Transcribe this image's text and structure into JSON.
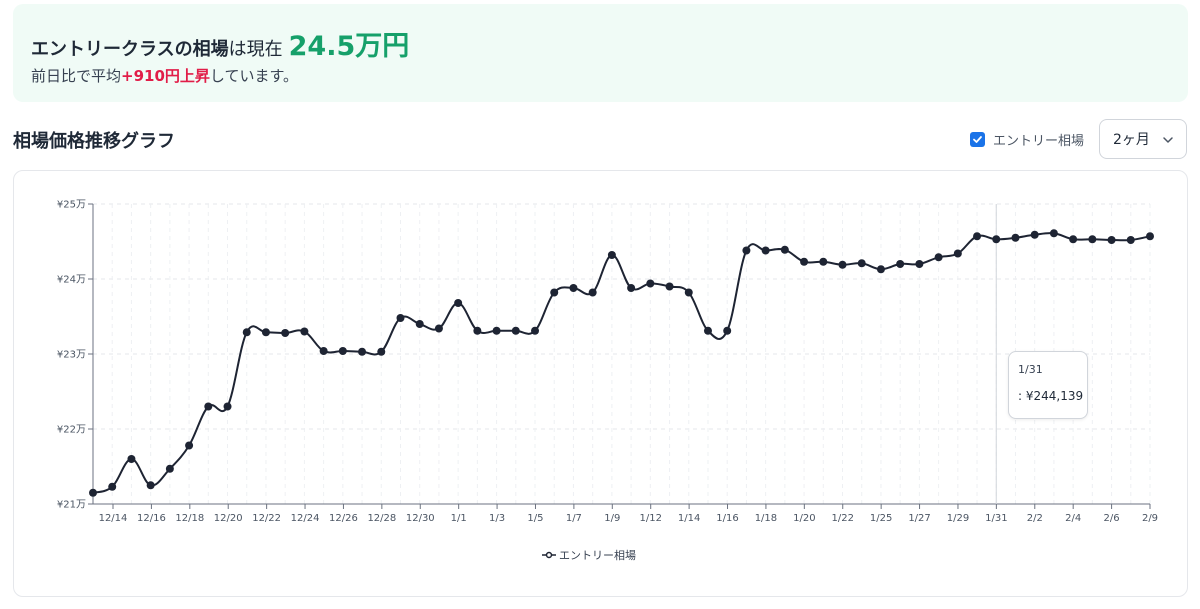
{
  "banner": {
    "category_label": "エントリークラスの相場",
    "price_text_prefix": "は現在",
    "price": "24.5万円",
    "change_prefix": "前日比で平均",
    "change_value": "+910円上昇",
    "change_suffix": "しています。"
  },
  "section": {
    "title": "相場価格推移グラフ"
  },
  "controls": {
    "toggle_label": "エントリー相場",
    "toggle_checked": true,
    "period_value": "2ヶ月",
    "chevron_icon": "chevron-down-icon"
  },
  "tooltip": {
    "date": "1/31",
    "value": ": ¥244,139"
  },
  "colors": {
    "price_green": "#16a06a",
    "change_red": "#e11d48",
    "line": "#1e2433",
    "checkbox_blue": "#1a73e8",
    "banner_bg": "#f0fbf6"
  },
  "chart_data": {
    "type": "line",
    "ylim": [
      210000,
      250000
    ],
    "y_ticks": [
      210000,
      220000,
      230000,
      240000,
      250000
    ],
    "y_tick_labels": [
      "¥21万",
      "¥22万",
      "¥23万",
      "¥24万",
      "¥25万"
    ],
    "x_tick_labels": [
      "12/14",
      "12/16",
      "12/18",
      "12/20",
      "12/22",
      "12/24",
      "12/26",
      "12/28",
      "12/30",
      "1/1",
      "1/3",
      "1/5",
      "1/7",
      "1/9",
      "1/12",
      "1/14",
      "1/16",
      "1/18",
      "1/20",
      "1/22",
      "1/25",
      "1/27",
      "1/29",
      "1/31",
      "2/2",
      "2/4",
      "2/6",
      "2/9"
    ],
    "grid": true,
    "legend_position": "bottom-center",
    "series": [
      {
        "name": "エントリー相場",
        "color": "#1e2433",
        "values": [
          211500,
          212300,
          216000,
          212500,
          214700,
          217800,
          223000,
          223000,
          232900,
          232900,
          232800,
          233000,
          230400,
          230400,
          230300,
          230300,
          234800,
          234000,
          233400,
          236800,
          233100,
          233100,
          233100,
          233100,
          238200,
          238800,
          238200,
          243200,
          238800,
          239400,
          239000,
          238200,
          233100,
          233100,
          243800,
          243800,
          243900,
          242300,
          242300,
          241900,
          242100,
          241300,
          242000,
          242000,
          242900,
          243400,
          245700,
          245300,
          245500,
          245900,
          246100,
          245300,
          245300,
          245200,
          245200,
          245700
        ]
      }
    ]
  },
  "legend": {
    "label": "エントリー相場"
  }
}
